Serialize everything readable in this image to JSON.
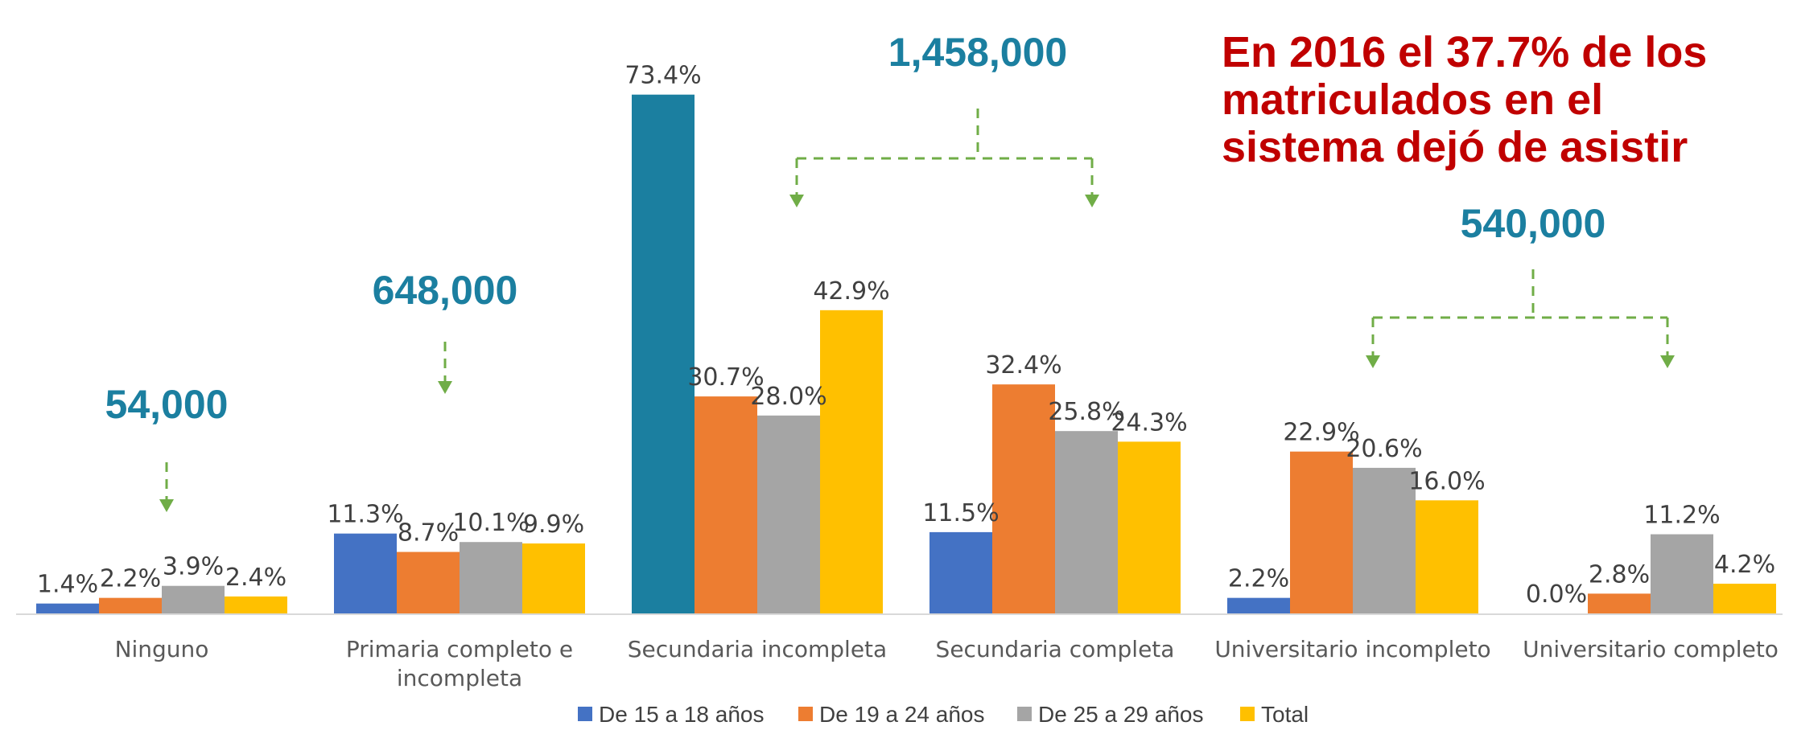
{
  "chart_data": {
    "type": "bar",
    "title": "",
    "xlabel": "",
    "ylabel": "",
    "ylim": [
      0,
      80
    ],
    "grid": false,
    "legend_position": "bottom",
    "categories": [
      [
        "Ninguno"
      ],
      [
        "Primaria completo e",
        "incompleta"
      ],
      [
        "Secundaria incompleta"
      ],
      [
        "Secundaria completa"
      ],
      [
        "Universitario incompleto"
      ],
      [
        "Universitario completo"
      ]
    ],
    "series": [
      {
        "name": "De 15 a 18 años",
        "color": "#4472C4",
        "values": [
          1.4,
          11.3,
          73.4,
          11.5,
          2.2,
          0.0
        ],
        "labels": [
          "1.4%",
          "11.3%",
          "73.4%",
          "11.5%",
          "2.2%",
          "0.0%"
        ]
      },
      {
        "name": "De 19 a 24 años",
        "color": "#ED7D31",
        "values": [
          2.2,
          8.7,
          30.7,
          32.4,
          22.9,
          2.8
        ],
        "labels": [
          "2.2%",
          "8.7%",
          "30.7%",
          "32.4%",
          "22.9%",
          "2.8%"
        ]
      },
      {
        "name": "De 25 a 29 años",
        "color": "#A5A5A5",
        "values": [
          3.9,
          10.1,
          28.0,
          25.8,
          20.6,
          11.2
        ],
        "labels": [
          "3.9%",
          "10.1%",
          "28.0%",
          "25.8%",
          "20.6%",
          "11.2%"
        ]
      },
      {
        "name": "Total",
        "color": "#FFC000",
        "values": [
          2.4,
          9.9,
          42.9,
          24.3,
          16.0,
          4.2
        ],
        "labels": [
          "2.4%",
          "9.9%",
          "42.9%",
          "24.3%",
          "16.0%",
          "4.2%"
        ]
      }
    ],
    "highlight": {
      "series": 0,
      "category": 2,
      "color": "#1B7FA0"
    },
    "annotations": {
      "totals": [
        {
          "text": "54,000",
          "categories": [
            0
          ]
        },
        {
          "text": "648,000",
          "categories": [
            1
          ]
        },
        {
          "text": "1,458,000",
          "categories": [
            2,
            3
          ]
        },
        {
          "text": "540,000",
          "categories": [
            4,
            5
          ]
        }
      ],
      "callout": [
        "En 2016 el 37.7% de los",
        "matriculados en el",
        "sistema dejó de asistir"
      ]
    }
  },
  "colors": {
    "total_number": "#1B7FA0",
    "callout": "#C00000",
    "arrow": "#70AD47",
    "axis": "#D9D9D9"
  }
}
